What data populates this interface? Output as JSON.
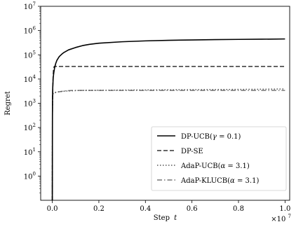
{
  "chart_data": {
    "type": "line",
    "xlabel_main": "Step",
    "xlabel_var": "t",
    "ylabel": "Regret",
    "x_multiplier_base": "×10",
    "x_multiplier_exp": "7",
    "xlim": [
      -0.05,
      1.02
    ],
    "ylim_log10": [
      -1,
      7
    ],
    "y_scale": "log",
    "grid": false,
    "legend_position": "lower-right",
    "x_ticks": [
      {
        "value": 0.0,
        "label": "0.0"
      },
      {
        "value": 0.2,
        "label": "0.2"
      },
      {
        "value": 0.4,
        "label": "0.4"
      },
      {
        "value": 0.6,
        "label": "0.6"
      },
      {
        "value": 0.8,
        "label": "0.8"
      },
      {
        "value": 1.0,
        "label": "1.0"
      }
    ],
    "y_ticks": [
      {
        "exp": 0,
        "base": "10",
        "sup": "0"
      },
      {
        "exp": 1,
        "base": "10",
        "sup": "1"
      },
      {
        "exp": 2,
        "base": "10",
        "sup": "2"
      },
      {
        "exp": 3,
        "base": "10",
        "sup": "3"
      },
      {
        "exp": 4,
        "base": "10",
        "sup": "4"
      },
      {
        "exp": 5,
        "base": "10",
        "sup": "5"
      },
      {
        "exp": 6,
        "base": "10",
        "sup": "6"
      },
      {
        "exp": 7,
        "base": "10",
        "sup": "7"
      }
    ],
    "series": [
      {
        "name": "DP-UCB(γ = 0.1)",
        "name_prefix": "DP-UCB(",
        "name_var": "γ",
        "name_suffix": " = 0.1)",
        "color": "#000000",
        "style": "solid",
        "width": 1.6,
        "points": [
          [
            0.0,
            0.1
          ],
          [
            0.0005,
            300
          ],
          [
            0.001,
            2000
          ],
          [
            0.002,
            5000
          ],
          [
            0.004,
            12000
          ],
          [
            0.007,
            20000
          ],
          [
            0.01,
            30000
          ],
          [
            0.015,
            45000
          ],
          [
            0.02,
            60000
          ],
          [
            0.03,
            85000
          ],
          [
            0.04,
            105000
          ],
          [
            0.05,
            125000
          ],
          [
            0.07,
            160000
          ],
          [
            0.1,
            200000
          ],
          [
            0.13,
            240000
          ],
          [
            0.16,
            270000
          ],
          [
            0.2,
            300000
          ],
          [
            0.3,
            345000
          ],
          [
            0.4,
            375000
          ],
          [
            0.5,
            395000
          ],
          [
            0.6,
            410000
          ],
          [
            0.7,
            422000
          ],
          [
            0.8,
            432000
          ],
          [
            0.9,
            440000
          ],
          [
            1.0,
            450000
          ]
        ]
      },
      {
        "name": "DP-SE",
        "name_prefix": "DP-SE",
        "name_var": "",
        "name_suffix": "",
        "color": "#333333",
        "style": "dashed",
        "width": 1.5,
        "points": [
          [
            0.0,
            0.1
          ],
          [
            0.0005,
            300
          ],
          [
            0.001,
            1500
          ],
          [
            0.002,
            4000
          ],
          [
            0.003,
            10000
          ],
          [
            0.005,
            25000
          ],
          [
            0.008,
            33000
          ],
          [
            0.02,
            33000
          ],
          [
            0.3,
            33000
          ],
          [
            0.6,
            33000
          ],
          [
            1.0,
            33000
          ]
        ]
      },
      {
        "name": "AdaP-UCB(α = 3.1)",
        "name_prefix": "AdaP-UCB(",
        "name_var": "α",
        "name_suffix": " = 3.1)",
        "color": "#555555",
        "style": "dotted",
        "width": 1.5,
        "points": [
          [
            0.0,
            0.1
          ],
          [
            0.0005,
            300
          ],
          [
            0.001,
            1200
          ],
          [
            0.002,
            2200
          ],
          [
            0.004,
            2600
          ],
          [
            0.01,
            2800
          ],
          [
            0.03,
            3000
          ],
          [
            0.06,
            3200
          ],
          [
            0.09,
            3300
          ],
          [
            0.12,
            3400
          ],
          [
            0.3,
            3500
          ],
          [
            0.5,
            3600
          ],
          [
            0.7,
            3700
          ],
          [
            0.9,
            3800
          ],
          [
            1.0,
            3900
          ]
        ]
      },
      {
        "name": "AdaP-KLUCB(α = 3.1)",
        "name_prefix": "AdaP-KLUCB(",
        "name_var": "α",
        "name_suffix": " = 3.1)",
        "color": "#777777",
        "style": "dashdot",
        "width": 1.5,
        "points": [
          [
            0.0,
            0.1
          ],
          [
            0.0005,
            300
          ],
          [
            0.001,
            1200
          ],
          [
            0.002,
            2200
          ],
          [
            0.004,
            2500
          ],
          [
            0.01,
            2700
          ],
          [
            0.03,
            3000
          ],
          [
            0.06,
            3300
          ],
          [
            0.09,
            3400
          ],
          [
            0.12,
            3400
          ],
          [
            0.3,
            3400
          ],
          [
            0.5,
            3400
          ],
          [
            0.7,
            3400
          ],
          [
            0.9,
            3400
          ],
          [
            1.0,
            3400
          ]
        ]
      }
    ]
  }
}
